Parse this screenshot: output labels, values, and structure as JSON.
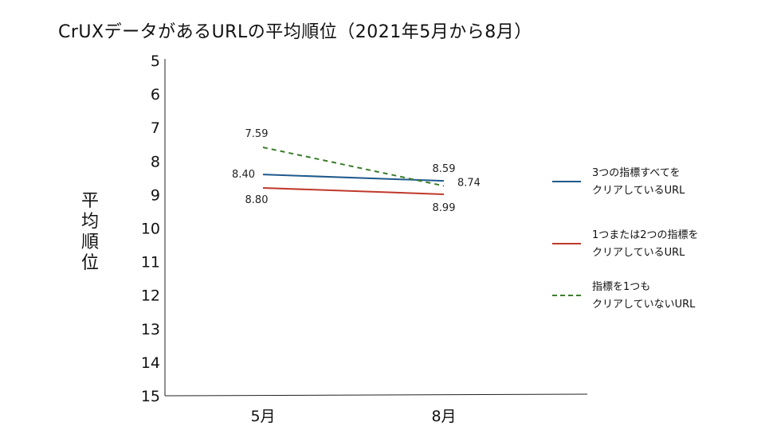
{
  "title": "CrUXデータがあるURLの平均順位（2021年5月から8月）",
  "chart_data": {
    "type": "line",
    "title": "CrUXデータがあるURLの平均順位（2021年5月から8月）",
    "ylabel": "平均順位",
    "xlabel": "",
    "categories": [
      "5月",
      "8月"
    ],
    "ylim": [
      5,
      15
    ],
    "y_inverted": true,
    "y_ticks": [
      "5",
      "6",
      "7",
      "8",
      "9",
      "10",
      "11",
      "12",
      "13",
      "14",
      "15"
    ],
    "grid": false,
    "legend": "right",
    "series": [
      {
        "name": "3つの指標すべてをクリアしているURL",
        "legend_text": "3つの指標すべてを\nクリアしているURL",
        "values": [
          8.4,
          8.59
        ],
        "labels": [
          "8.40",
          "8.59"
        ],
        "color": "#1f5a8c",
        "dash": "solid"
      },
      {
        "name": "1つまたは2つの指標をクリアしているURL",
        "legend_text": "1つまたは2つの指標を\nクリアしているURL",
        "values": [
          8.8,
          8.99
        ],
        "labels": [
          "8.80",
          "8.99"
        ],
        "color": "#c0392b",
        "dash": "solid"
      },
      {
        "name": "指標を1つもクリアしていないURL",
        "legend_text": "指標を1つも\nクリアしていないURL",
        "values": [
          7.59,
          8.74
        ],
        "labels": [
          "7.59",
          "8.74"
        ],
        "color": "#3a7d2a",
        "dash": "dashed"
      }
    ]
  }
}
